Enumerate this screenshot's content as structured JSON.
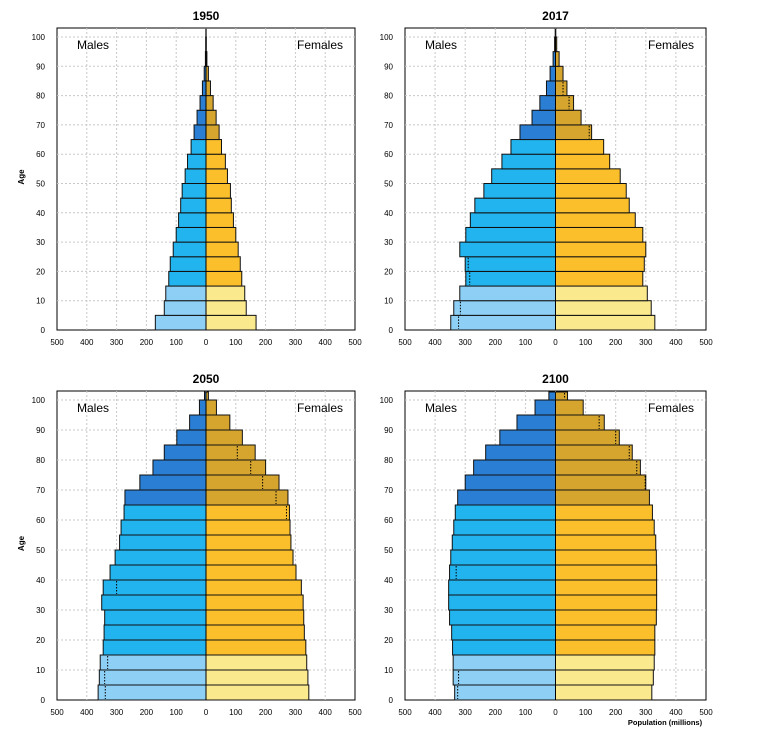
{
  "figure": {
    "ylabel": "Age",
    "xlabel": "Population (millions)",
    "left_label": "Males",
    "right_label": "Females"
  },
  "colors": {
    "male_young": "#8ecff6",
    "male_working": "#22b4ee",
    "male_old": "#2a7fd4",
    "female_young": "#fbe98e",
    "female_working": "#fbbf2b",
    "female_old": "#d6a52e",
    "grid": "#c8c8c8",
    "bar_stroke": "#111111"
  },
  "chart_data": [
    {
      "type": "bar",
      "title": "1950",
      "xlim": [
        -500,
        500
      ],
      "xticks": [
        "500",
        "400",
        "300",
        "200",
        "100",
        "0",
        "100",
        "200",
        "300",
        "400",
        "500"
      ],
      "yticks": [
        "0",
        "10",
        "20",
        "30",
        "40",
        "50",
        "60",
        "70",
        "80",
        "90",
        "100"
      ],
      "age_groups": [
        "0-4",
        "5-9",
        "10-14",
        "15-19",
        "20-24",
        "25-29",
        "30-34",
        "35-39",
        "40-44",
        "45-49",
        "50-54",
        "55-59",
        "60-64",
        "65-69",
        "70-74",
        "75-79",
        "80-84",
        "85-89",
        "90-94",
        "95-99",
        "100+"
      ],
      "series": [
        {
          "name": "Males",
          "values": [
            170,
            140,
            135,
            125,
            120,
            110,
            100,
            92,
            85,
            80,
            70,
            62,
            50,
            40,
            30,
            20,
            12,
            6,
            2,
            1,
            0.5
          ]
        },
        {
          "name": "Females",
          "values": [
            168,
            135,
            130,
            120,
            115,
            108,
            100,
            92,
            85,
            82,
            72,
            65,
            52,
            44,
            34,
            24,
            15,
            8,
            3,
            1,
            0.5
          ]
        },
        {
          "name": "Males (dotted reference)",
          "values": [
            null,
            null,
            null,
            null,
            null,
            null,
            null,
            null,
            null,
            null,
            null,
            null,
            null,
            null,
            null,
            null,
            null,
            null,
            null,
            null,
            null
          ]
        },
        {
          "name": "Females (dotted reference)",
          "values": [
            null,
            null,
            null,
            null,
            null,
            null,
            null,
            null,
            null,
            null,
            null,
            null,
            null,
            null,
            null,
            null,
            null,
            null,
            null,
            null,
            null
          ]
        }
      ]
    },
    {
      "type": "bar",
      "title": "2017",
      "xlim": [
        -500,
        500
      ],
      "xticks": [
        "500",
        "400",
        "300",
        "200",
        "100",
        "0",
        "100",
        "200",
        "300",
        "400",
        "500"
      ],
      "yticks": [
        "0",
        "10",
        "20",
        "30",
        "40",
        "50",
        "60",
        "70",
        "80",
        "90",
        "100"
      ],
      "age_groups": [
        "0-4",
        "5-9",
        "10-14",
        "15-19",
        "20-24",
        "25-29",
        "30-34",
        "35-39",
        "40-44",
        "45-49",
        "50-54",
        "55-59",
        "60-64",
        "65-69",
        "70-74",
        "75-79",
        "80-84",
        "85-89",
        "90-94",
        "95-99",
        "100+"
      ],
      "series": [
        {
          "name": "Males",
          "values": [
            348,
            338,
            318,
            298,
            300,
            318,
            298,
            283,
            268,
            238,
            212,
            178,
            148,
            118,
            78,
            52,
            30,
            18,
            8,
            3,
            1
          ]
        },
        {
          "name": "Females",
          "values": [
            330,
            318,
            305,
            290,
            295,
            300,
            290,
            265,
            245,
            235,
            215,
            180,
            160,
            120,
            85,
            60,
            38,
            25,
            12,
            4,
            1
          ]
        },
        {
          "name": "Males (dotted reference)",
          "values": [
            322,
            316,
            null,
            285,
            290,
            null,
            null,
            null,
            null,
            null,
            null,
            null,
            null,
            null,
            null,
            null,
            null,
            null,
            null,
            null,
            null
          ]
        },
        {
          "name": "Females (dotted reference)",
          "values": [
            null,
            null,
            null,
            null,
            null,
            null,
            null,
            null,
            null,
            null,
            null,
            null,
            null,
            112,
            null,
            45,
            25,
            null,
            null,
            null,
            null
          ]
        }
      ]
    },
    {
      "type": "bar",
      "title": "2050",
      "xlim": [
        -500,
        500
      ],
      "xticks": [
        "500",
        "400",
        "300",
        "200",
        "100",
        "0",
        "100",
        "200",
        "300",
        "400",
        "500"
      ],
      "yticks": [
        "0",
        "10",
        "20",
        "30",
        "40",
        "50",
        "60",
        "70",
        "80",
        "90",
        "100"
      ],
      "age_groups": [
        "0-4",
        "5-9",
        "10-14",
        "15-19",
        "20-24",
        "25-29",
        "30-34",
        "35-39",
        "40-44",
        "45-49",
        "50-54",
        "55-59",
        "60-64",
        "65-69",
        "70-74",
        "75-79",
        "80-84",
        "85-89",
        "90-94",
        "95-99",
        "100+"
      ],
      "series": [
        {
          "name": "Males",
          "values": [
            362,
            358,
            355,
            345,
            342,
            340,
            350,
            345,
            322,
            305,
            290,
            285,
            275,
            272,
            222,
            178,
            140,
            98,
            55,
            22,
            5
          ]
        },
        {
          "name": "Females",
          "values": [
            345,
            342,
            338,
            335,
            330,
            328,
            326,
            320,
            302,
            292,
            285,
            282,
            280,
            275,
            245,
            200,
            165,
            122,
            80,
            35,
            8
          ]
        },
        {
          "name": "Males (dotted reference)",
          "values": [
            338,
            340,
            330,
            null,
            null,
            null,
            null,
            300,
            null,
            null,
            null,
            null,
            null,
            null,
            null,
            null,
            null,
            null,
            null,
            null,
            null
          ]
        },
        {
          "name": "Females (dotted reference)",
          "values": [
            null,
            null,
            null,
            null,
            null,
            null,
            null,
            null,
            null,
            null,
            null,
            null,
            270,
            235,
            190,
            150,
            105,
            null,
            null,
            null,
            null
          ]
        }
      ]
    },
    {
      "type": "bar",
      "title": "2100",
      "xlim": [
        -500,
        500
      ],
      "xticks": [
        "500",
        "400",
        "300",
        "200",
        "100",
        "0",
        "100",
        "200",
        "300",
        "400",
        "500"
      ],
      "yticks": [
        "0",
        "10",
        "20",
        "30",
        "40",
        "50",
        "60",
        "70",
        "80",
        "90",
        "100"
      ],
      "age_groups": [
        "0-4",
        "5-9",
        "10-14",
        "15-19",
        "20-24",
        "25-29",
        "30-34",
        "35-39",
        "40-44",
        "45-49",
        "50-54",
        "55-59",
        "60-64",
        "65-69",
        "70-74",
        "75-79",
        "80-84",
        "85-89",
        "90-94",
        "95-99",
        "100+"
      ],
      "series": [
        {
          "name": "Males",
          "values": [
            335,
            340,
            340,
            342,
            345,
            352,
            355,
            355,
            352,
            348,
            343,
            338,
            333,
            325,
            300,
            272,
            232,
            185,
            128,
            68,
            22
          ]
        },
        {
          "name": "Females",
          "values": [
            320,
            325,
            328,
            330,
            330,
            335,
            336,
            336,
            336,
            335,
            333,
            328,
            322,
            312,
            300,
            282,
            255,
            212,
            162,
            92,
            40
          ]
        },
        {
          "name": "Males (dotted reference)",
          "values": [
            325,
            322,
            null,
            null,
            null,
            null,
            null,
            null,
            330,
            null,
            null,
            null,
            null,
            null,
            null,
            null,
            null,
            null,
            null,
            null,
            null
          ]
        },
        {
          "name": "Females (dotted reference)",
          "values": [
            null,
            null,
            null,
            null,
            null,
            null,
            null,
            null,
            null,
            null,
            null,
            null,
            null,
            null,
            298,
            270,
            245,
            200,
            145,
            null,
            30
          ]
        }
      ]
    }
  ]
}
